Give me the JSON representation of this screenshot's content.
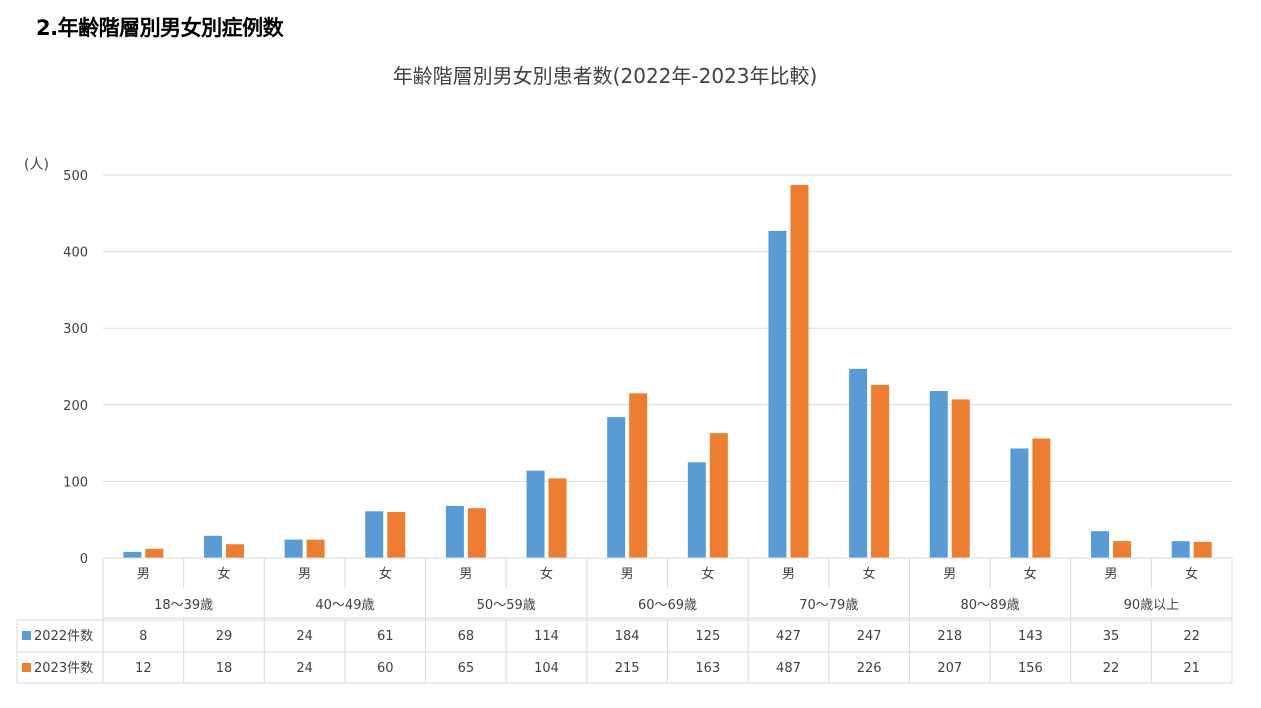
{
  "section_heading": "2.年齢階層別男女別症例数",
  "chart_data": {
    "type": "bar",
    "title": "年齢階層別男女別患者数(2022年-2023年比較)",
    "unit_label": "(人)",
    "ylim": [
      0,
      500
    ],
    "yticks": [
      0,
      100,
      200,
      300,
      400,
      500
    ],
    "grid": true,
    "categories": [
      "男",
      "女",
      "男",
      "女",
      "男",
      "女",
      "男",
      "女",
      "男",
      "女",
      "男",
      "女",
      "男",
      "女"
    ],
    "groups": [
      "18〜39歳",
      "40〜49歳",
      "50〜59歳",
      "60〜69歳",
      "70〜79歳",
      "80〜89歳",
      "90歳以上"
    ],
    "series": [
      {
        "name": "2022件数",
        "color": "#5b9bd5",
        "values": [
          8,
          29,
          24,
          61,
          68,
          114,
          184,
          125,
          427,
          247,
          218,
          143,
          35,
          22
        ]
      },
      {
        "name": "2023件数",
        "color": "#ed7d31",
        "values": [
          12,
          18,
          24,
          60,
          65,
          104,
          215,
          163,
          487,
          226,
          207,
          156,
          22,
          21
        ]
      }
    ],
    "legend_placement": "data-table"
  }
}
